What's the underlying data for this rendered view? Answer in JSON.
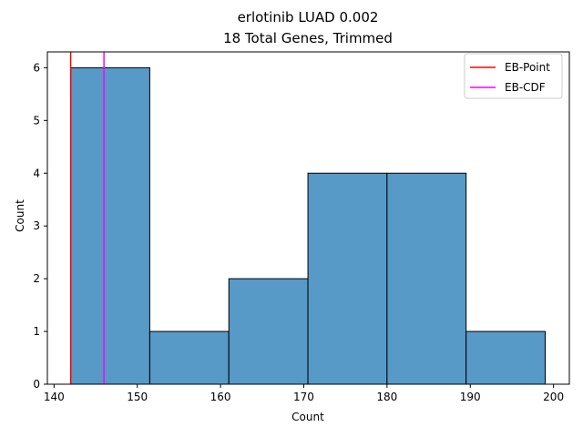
{
  "chart_data": {
    "type": "bar",
    "title": "erlotinib LUAD 0.002",
    "subtitle": "18 Total Genes, Trimmed",
    "xlabel": "Count",
    "ylabel": "Count",
    "xlim": [
      139.2,
      201.9
    ],
    "ylim": [
      0,
      6.3
    ],
    "x_ticks": [
      140,
      150,
      160,
      170,
      180,
      190,
      200
    ],
    "y_ticks": [
      0,
      1,
      2,
      3,
      4,
      5,
      6
    ],
    "bins": [
      {
        "start": 142.0,
        "end": 151.5,
        "count": 6
      },
      {
        "start": 151.5,
        "end": 161.0,
        "count": 1
      },
      {
        "start": 161.0,
        "end": 170.5,
        "count": 2
      },
      {
        "start": 170.5,
        "end": 180.0,
        "count": 4
      },
      {
        "start": 180.0,
        "end": 189.5,
        "count": 4
      },
      {
        "start": 189.5,
        "end": 199.0,
        "count": 1
      }
    ],
    "vlines": [
      {
        "name": "EB-Point",
        "x": 142.0,
        "color": "#ff0000"
      },
      {
        "name": "EB-CDF",
        "x": 146.0,
        "color": "#ff00ff"
      }
    ],
    "bar_color": "#5799c7",
    "edge_color": "#000000",
    "grid": false,
    "legend_position": "top-right"
  }
}
